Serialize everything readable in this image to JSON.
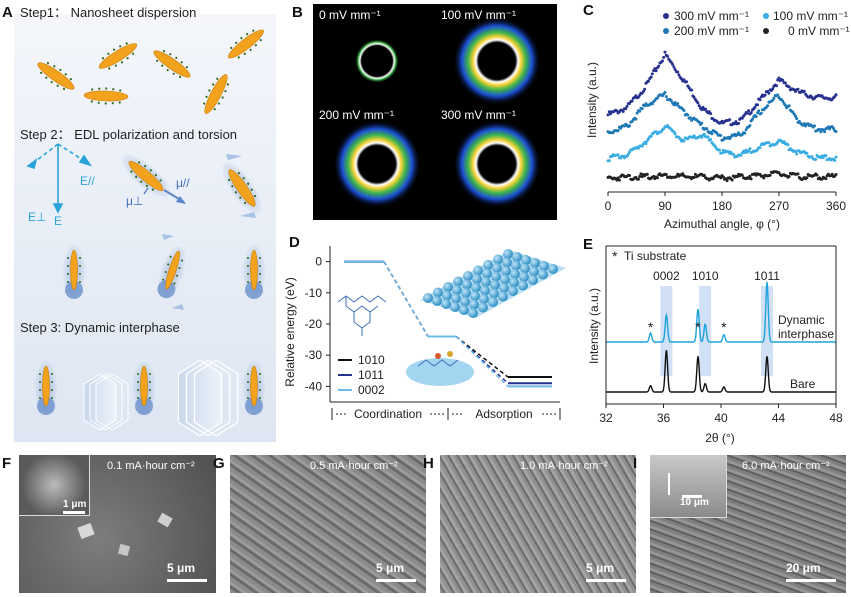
{
  "panel_letters": {
    "a": "A",
    "b": "B",
    "c": "C",
    "d": "D",
    "e": "E",
    "f": "F",
    "g": "G",
    "h": "H",
    "i": "I"
  },
  "panelA": {
    "step1": "Step1： Nanosheet dispersion",
    "step2": "Step 2： EDL polarization and torsion",
    "step3": "Step 3: Dynamic interphase",
    "e_perp": "E⊥",
    "e_par": "E//",
    "e": "E",
    "mu_par": "μ//",
    "mu_perp": "μ⊥"
  },
  "panelB": {
    "labels": [
      "0 mV mm⁻¹",
      "100 mV mm⁻¹",
      "200 mV mm⁻¹",
      "300 mV mm⁻¹"
    ]
  },
  "panelC": {
    "legend": [
      "300 mV mm⁻¹",
      "100 mV mm⁻¹",
      "200 mV mm⁻¹",
      "0 mV mm⁻¹"
    ],
    "ylabel": "Intensity (a.u.)",
    "xlabel": "Azimuthal angle, φ (°)",
    "xticks": [
      "0",
      "90",
      "180",
      "270",
      "360"
    ]
  },
  "panelD": {
    "ylabel": "Relative energy (eV)",
    "yticks": [
      "0",
      "-10",
      "-20",
      "-30",
      "-40"
    ],
    "legend": [
      "10̅1̅0",
      "1011̅",
      "0002"
    ],
    "legend_plain": [
      "1010",
      "1011",
      "0002"
    ],
    "coordination": "Coordination",
    "adsorption": "Adsorption"
  },
  "panelE": {
    "title": "Ti  substrate",
    "star": "*",
    "peak_labels": [
      "0002",
      "1010",
      "1011"
    ],
    "ylabel": "Intensity (a.u.)",
    "xlabel": "2θ (°)",
    "xticks": [
      "32",
      "36",
      "40",
      "44",
      "48"
    ],
    "curve_labels": [
      "Dynamic",
      "interphase",
      "Bare"
    ]
  },
  "sem": {
    "F": {
      "label": "0.1 mA·hour cm⁻²",
      "scale": "5 μm",
      "inset_scale": "1 μm"
    },
    "G": {
      "label": "0.5 mA·hour cm⁻²",
      "scale": "5 μm"
    },
    "H": {
      "label": "1.0 mA·hour cm⁻²",
      "scale": "5 μm"
    },
    "I": {
      "label": "6.0 mA·hour cm⁻²",
      "scale": "20 μm",
      "inset_scale": "10 μm"
    }
  },
  "chart_data": [
    {
      "type": "line",
      "panel": "C",
      "xlabel": "Azimuthal angle, φ (°)",
      "ylabel": "Intensity (a.u.)",
      "xlim": [
        0,
        360
      ],
      "x": [
        0,
        30,
        60,
        90,
        120,
        150,
        180,
        210,
        240,
        270,
        300,
        330,
        360
      ],
      "series": [
        {
          "name": "300 mV mm⁻¹",
          "color": "#27318f",
          "values": [
            0.48,
            0.53,
            0.68,
            0.9,
            0.72,
            0.52,
            0.42,
            0.44,
            0.58,
            0.72,
            0.64,
            0.6,
            0.6
          ]
        },
        {
          "name": "200 mV mm⁻¹",
          "color": "#1e78b5",
          "values": [
            0.36,
            0.4,
            0.55,
            0.62,
            0.5,
            0.4,
            0.32,
            0.34,
            0.5,
            0.62,
            0.44,
            0.38,
            0.38
          ]
        },
        {
          "name": "100 mV mm⁻¹",
          "color": "#39ade3",
          "values": [
            0.18,
            0.2,
            0.3,
            0.4,
            0.3,
            0.34,
            0.22,
            0.2,
            0.26,
            0.3,
            0.22,
            0.18,
            0.18
          ]
        },
        {
          "name": "0 mV mm⁻¹",
          "color": "#222222",
          "values": [
            0.04,
            0.05,
            0.05,
            0.06,
            0.05,
            0.05,
            0.04,
            0.05,
            0.06,
            0.07,
            0.05,
            0.05,
            0.05
          ]
        }
      ]
    },
    {
      "type": "line",
      "panel": "D",
      "ylabel": "Relative energy (eV)",
      "ylim": [
        -45,
        5
      ],
      "stages": [
        "initial",
        "coordination",
        "adsorption"
      ],
      "series": [
        {
          "name": "1010",
          "color": "#111111",
          "values": [
            0,
            -24,
            -37
          ]
        },
        {
          "name": "1011",
          "color": "#22338f",
          "values": [
            0,
            -24,
            -39
          ]
        },
        {
          "name": "0002",
          "color": "#6cb8e8",
          "values": [
            0,
            -24,
            -40
          ]
        }
      ]
    },
    {
      "type": "line",
      "panel": "E",
      "xlabel": "2θ (°)",
      "ylabel": "Intensity (a.u.)",
      "xlim": [
        32,
        48
      ],
      "peaks_2theta": {
        "Ti substrate (*)": [
          35.1,
          38.4,
          40.2
        ],
        "0002": 36.2,
        "1010": 38.9,
        "1011": 43.2
      },
      "series": [
        {
          "name": "Dynamic interphase",
          "color": "#1ea3dc",
          "peaks": [
            [
              35.1,
              0.15
            ],
            [
              36.2,
              0.45
            ],
            [
              38.4,
              0.55
            ],
            [
              38.9,
              0.3
            ],
            [
              40.2,
              0.12
            ],
            [
              43.2,
              1.0
            ]
          ]
        },
        {
          "name": "Bare",
          "color": "#111111",
          "peaks": [
            [
              35.1,
              0.15
            ],
            [
              36.2,
              1.0
            ],
            [
              38.4,
              0.85
            ],
            [
              38.9,
              0.2
            ],
            [
              40.2,
              0.12
            ],
            [
              43.2,
              0.85
            ]
          ]
        }
      ]
    }
  ]
}
